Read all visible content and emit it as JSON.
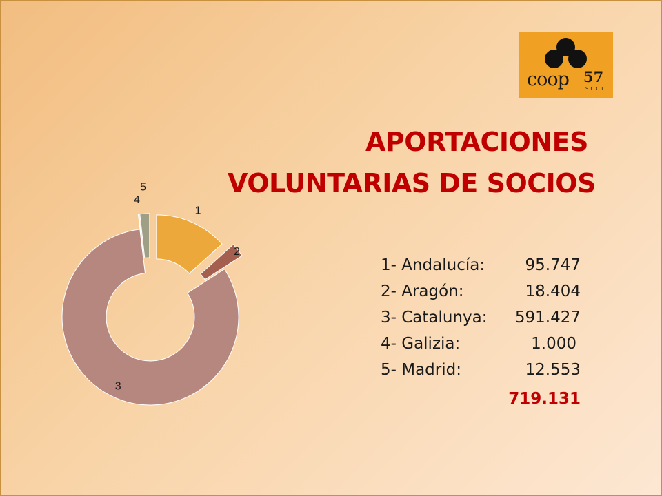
{
  "logo": {
    "word": "coop",
    "number": "57",
    "sub": "SCCL"
  },
  "title": {
    "line1": "APORTACIONES",
    "line2": "VOLUNTARIAS DE SOCIOS"
  },
  "legend": [
    {
      "label": "1- Andalucía:",
      "value": "95.747"
    },
    {
      "label": "2- Aragón:",
      "value": "18.404"
    },
    {
      "label": "3- Catalunya:",
      "value": "591.427"
    },
    {
      "label": "4- Galizia:",
      "value": "1.000"
    },
    {
      "label": "5- Madrid:",
      "value": "12.553"
    }
  ],
  "total": "719.131",
  "chart_data": {
    "type": "pie",
    "style": "doughnut-exploded",
    "categories": [
      "1",
      "2",
      "3",
      "4",
      "5"
    ],
    "values": [
      95747,
      18404,
      591427,
      1000,
      12553
    ],
    "colors": [
      "#eda83c",
      "#a45f4e",
      "#b5877f",
      "#efe3bc",
      "#9f9f86"
    ],
    "title": "APORTACIONES VOLUNTARIAS DE SOCIOS",
    "total": 719131
  }
}
